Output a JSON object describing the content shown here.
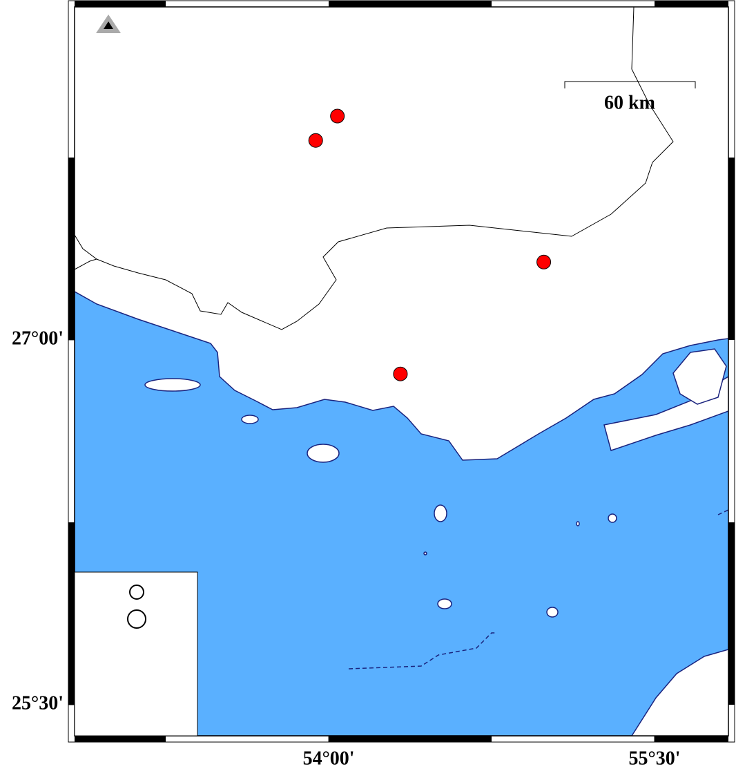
{
  "chart_data": {
    "type": "map",
    "xlim": [
      52.83,
      55.84
    ],
    "ylim": [
      25.372,
      28.369
    ],
    "xticks": [
      {
        "value": 54,
        "label": "54°00'"
      },
      {
        "value": 55.5,
        "label": "55°30'"
      }
    ],
    "yticks": [
      {
        "value": 27,
        "label": "27°00'"
      },
      {
        "value": 25.5,
        "label": "25°30'"
      }
    ],
    "scale_label": "60 km",
    "events": {
      "color": "#ff0000",
      "x": [
        54.04,
        53.94,
        54.99,
        54.33
      ],
      "values": [
        27.92,
        27.82,
        27.32,
        26.86
      ]
    }
  }
}
